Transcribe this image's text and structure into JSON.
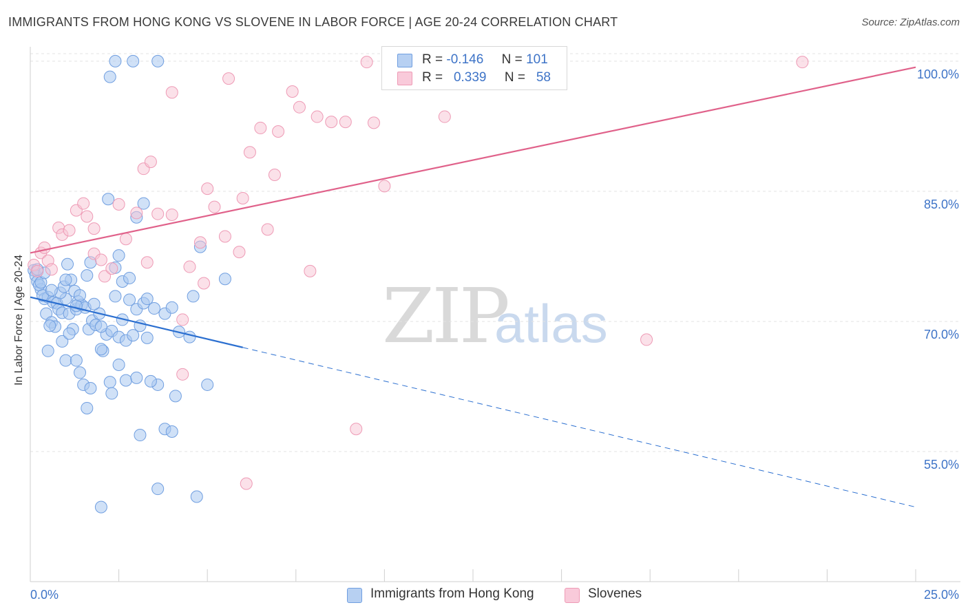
{
  "title": "IMMIGRANTS FROM HONG KONG VS SLOVENE IN LABOR FORCE | AGE 20-24 CORRELATION CHART",
  "source": "Source: ZipAtlas.com",
  "watermark": {
    "zip": "ZIP",
    "atlas": "atlas"
  },
  "legend": {
    "r_label": "R =",
    "n_label": "N =",
    "series": [
      {
        "r": "-0.146",
        "n": "101"
      },
      {
        "r": "0.339",
        "n": "58"
      }
    ]
  },
  "bottom_legend": [
    "Immigrants from Hong Kong",
    "Slovenes"
  ],
  "colors": {
    "blue_fill": "#a9c8f0",
    "blue_stroke": "#6f9ee0",
    "blue_line": "#2b6fd0",
    "pink_fill": "#f7c3d3",
    "pink_stroke": "#ee9ab5",
    "pink_line": "#e0618a",
    "grid": "#e3e3e3",
    "tick_text": "#3d73c7"
  },
  "chart_data": {
    "type": "scatter",
    "title": "IMMIGRANTS FROM HONG KONG VS SLOVENE IN LABOR FORCE | AGE 20-24 CORRELATION CHART",
    "xlabel": "",
    "ylabel": "In Labor Force | Age 20-24",
    "xlim": [
      0,
      25
    ],
    "ylim": [
      40,
      101.5
    ],
    "x_tick_labels": [
      "0.0%",
      "25.0%"
    ],
    "y_ticks": [
      55,
      70,
      85,
      100
    ],
    "y_tick_labels": [
      "55.0%",
      "70.0%",
      "85.0%",
      "100.0%"
    ],
    "grid": "horizontal dashed",
    "legend_position": "top-center",
    "series": [
      {
        "name": "Immigrants from Hong Kong",
        "r": -0.146,
        "n": 101,
        "trend": {
          "x": [
            0,
            6.0
          ],
          "y": [
            72.8,
            67.0
          ],
          "dashed_extension": {
            "x": [
              6.0,
              25.0
            ],
            "y": [
              67.0,
              48.6
            ]
          }
        },
        "points": [
          [
            0.1,
            75.9
          ],
          [
            0.15,
            75.3
          ],
          [
            0.2,
            74.6
          ],
          [
            0.3,
            73.7
          ],
          [
            0.4,
            72.6
          ],
          [
            0.5,
            72.8
          ],
          [
            0.45,
            70.9
          ],
          [
            0.6,
            69.9
          ],
          [
            0.7,
            69.4
          ],
          [
            0.25,
            74.2
          ],
          [
            0.35,
            73.0
          ],
          [
            0.55,
            69.5
          ],
          [
            0.65,
            72.2
          ],
          [
            0.75,
            72.1
          ],
          [
            0.8,
            71.4
          ],
          [
            0.9,
            71.0
          ],
          [
            1.0,
            72.6
          ],
          [
            1.1,
            70.9
          ],
          [
            1.2,
            69.1
          ],
          [
            1.3,
            71.4
          ],
          [
            0.85,
            73.3
          ],
          [
            0.95,
            74.0
          ],
          [
            1.05,
            76.6
          ],
          [
            1.15,
            74.8
          ],
          [
            1.25,
            73.5
          ],
          [
            1.35,
            72.3
          ],
          [
            1.45,
            71.9
          ],
          [
            1.55,
            71.6
          ],
          [
            1.65,
            69.1
          ],
          [
            1.75,
            70.1
          ],
          [
            1.85,
            69.6
          ],
          [
            1.95,
            70.9
          ],
          [
            2.05,
            66.6
          ],
          [
            2.15,
            68.5
          ],
          [
            2.25,
            63.0
          ],
          [
            0.5,
            66.6
          ],
          [
            1.0,
            65.5
          ],
          [
            1.4,
            64.1
          ],
          [
            1.5,
            62.7
          ],
          [
            1.7,
            62.3
          ],
          [
            1.6,
            60.0
          ],
          [
            1.3,
            65.5
          ],
          [
            2.0,
            69.4
          ],
          [
            2.3,
            68.9
          ],
          [
            2.5,
            68.2
          ],
          [
            2.7,
            67.8
          ],
          [
            2.9,
            68.4
          ],
          [
            3.1,
            69.5
          ],
          [
            3.3,
            68.1
          ],
          [
            3.0,
            71.4
          ],
          [
            2.4,
            72.9
          ],
          [
            2.6,
            74.6
          ],
          [
            2.8,
            72.5
          ],
          [
            3.2,
            72.1
          ],
          [
            3.5,
            71.5
          ],
          [
            3.8,
            70.9
          ],
          [
            4.0,
            71.6
          ],
          [
            4.2,
            68.8
          ],
          [
            4.5,
            68.2
          ],
          [
            4.6,
            72.9
          ],
          [
            4.8,
            78.6
          ],
          [
            5.5,
            74.9
          ],
          [
            5.0,
            62.7
          ],
          [
            4.1,
            61.4
          ],
          [
            3.6,
            62.7
          ],
          [
            3.4,
            63.1
          ],
          [
            2.7,
            63.2
          ],
          [
            2.5,
            65.0
          ],
          [
            2.0,
            66.8
          ],
          [
            2.3,
            61.7
          ],
          [
            3.0,
            63.5
          ],
          [
            3.1,
            56.9
          ],
          [
            3.8,
            57.6
          ],
          [
            4.0,
            57.3
          ],
          [
            3.6,
            50.7
          ],
          [
            4.7,
            49.8
          ],
          [
            2.0,
            48.6
          ],
          [
            2.4,
            100.0
          ],
          [
            2.9,
            100.0
          ],
          [
            3.6,
            100.0
          ],
          [
            2.25,
            98.2
          ],
          [
            2.2,
            84.1
          ],
          [
            3.2,
            83.6
          ],
          [
            3.0,
            82.0
          ],
          [
            2.5,
            77.6
          ],
          [
            2.4,
            76.2
          ],
          [
            1.7,
            76.8
          ],
          [
            1.6,
            75.3
          ],
          [
            1.0,
            74.8
          ],
          [
            0.3,
            74.5
          ],
          [
            0.4,
            75.6
          ],
          [
            0.2,
            76.0
          ],
          [
            0.6,
            73.6
          ],
          [
            1.8,
            72.0
          ],
          [
            1.3,
            71.8
          ],
          [
            0.9,
            67.7
          ],
          [
            1.1,
            68.6
          ],
          [
            2.8,
            75.0
          ],
          [
            2.6,
            70.2
          ],
          [
            3.3,
            72.6
          ],
          [
            1.4,
            73.0
          ]
        ]
      },
      {
        "name": "Slovenes",
        "r": 0.339,
        "n": 58,
        "trend": {
          "x": [
            0,
            25.0
          ],
          "y": [
            77.9,
            99.3
          ]
        },
        "points": [
          [
            0.1,
            76.5
          ],
          [
            0.2,
            75.8
          ],
          [
            0.3,
            77.9
          ],
          [
            0.4,
            78.5
          ],
          [
            0.5,
            77.0
          ],
          [
            0.6,
            76.0
          ],
          [
            0.8,
            80.8
          ],
          [
            0.9,
            80.0
          ],
          [
            1.1,
            80.5
          ],
          [
            1.3,
            82.8
          ],
          [
            1.5,
            83.6
          ],
          [
            1.6,
            82.1
          ],
          [
            1.8,
            80.7
          ],
          [
            1.8,
            77.8
          ],
          [
            2.0,
            77.1
          ],
          [
            2.1,
            75.2
          ],
          [
            2.3,
            76.1
          ],
          [
            2.5,
            83.5
          ],
          [
            2.7,
            79.5
          ],
          [
            3.0,
            82.5
          ],
          [
            3.2,
            87.6
          ],
          [
            3.4,
            88.4
          ],
          [
            3.3,
            76.8
          ],
          [
            3.6,
            82.4
          ],
          [
            4.0,
            82.3
          ],
          [
            4.0,
            96.4
          ],
          [
            4.3,
            70.2
          ],
          [
            4.5,
            76.3
          ],
          [
            4.8,
            79.1
          ],
          [
            4.9,
            74.4
          ],
          [
            5.0,
            85.3
          ],
          [
            5.2,
            83.2
          ],
          [
            5.5,
            79.8
          ],
          [
            5.6,
            98.0
          ],
          [
            5.9,
            78.0
          ],
          [
            6.0,
            84.2
          ],
          [
            6.2,
            89.5
          ],
          [
            6.5,
            92.3
          ],
          [
            6.7,
            80.6
          ],
          [
            6.9,
            86.9
          ],
          [
            7.0,
            91.9
          ],
          [
            7.4,
            96.5
          ],
          [
            7.6,
            94.7
          ],
          [
            7.9,
            75.8
          ],
          [
            8.1,
            93.6
          ],
          [
            8.5,
            93.0
          ],
          [
            8.9,
            93.0
          ],
          [
            9.5,
            99.9
          ],
          [
            9.7,
            92.9
          ],
          [
            10.0,
            85.6
          ],
          [
            12.6,
            99.9
          ],
          [
            11.7,
            93.6
          ],
          [
            14.9,
            99.9
          ],
          [
            17.4,
            67.9
          ],
          [
            21.8,
            99.9
          ],
          [
            4.3,
            63.9
          ],
          [
            9.2,
            57.6
          ],
          [
            6.1,
            51.3
          ]
        ]
      }
    ]
  }
}
